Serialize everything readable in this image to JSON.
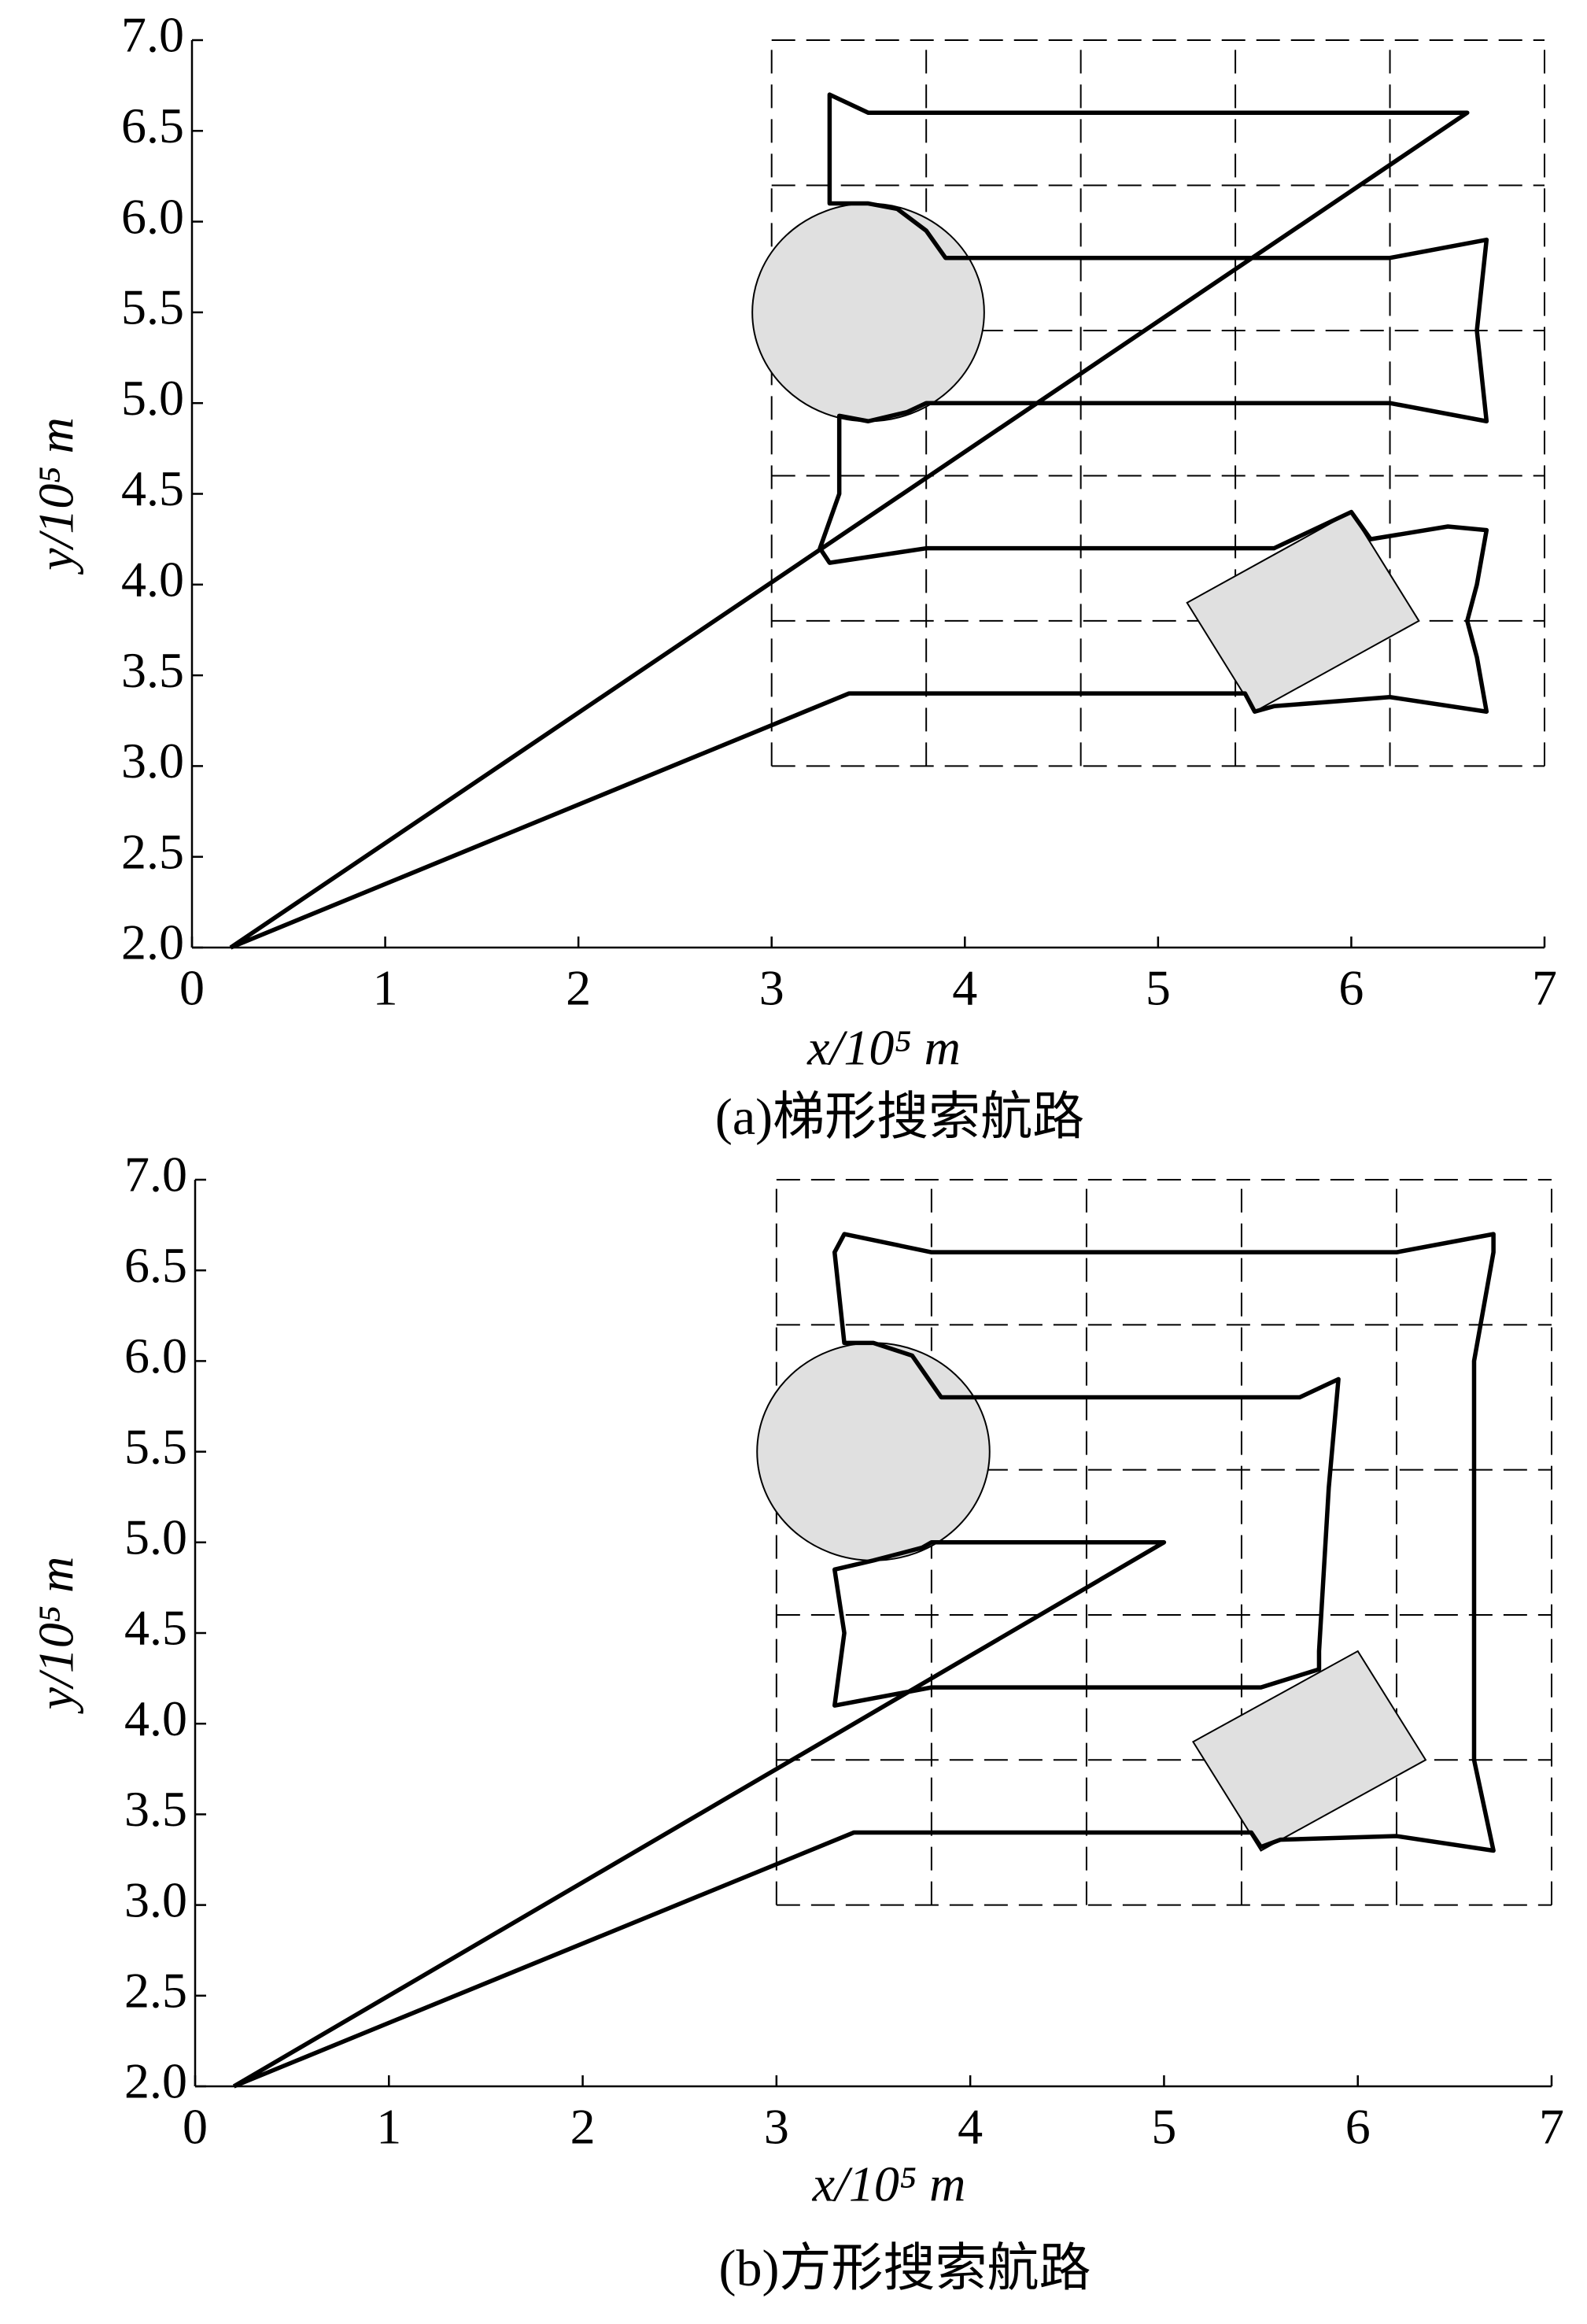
{
  "chart_data": [
    {
      "type": "line",
      "xlabel": "x/10⁵ m",
      "ylabel": "y/10⁵ m",
      "caption": "(a)梯形搜索航路",
      "xlim": [
        0,
        7
      ],
      "ylim": [
        2,
        7
      ],
      "xticks": [
        0,
        1,
        2,
        3,
        4,
        5,
        6,
        7
      ],
      "yticks": [
        {
          "value": 2,
          "label": "2.0"
        },
        {
          "value": 2.5,
          "label": "2.5"
        },
        {
          "value": 3,
          "label": "3.0"
        },
        {
          "value": 3.5,
          "label": "3.5"
        },
        {
          "value": 4,
          "label": "4.0"
        },
        {
          "value": 4.5,
          "label": "4.5"
        },
        {
          "value": 5,
          "label": "5.0"
        },
        {
          "value": 5.5,
          "label": "5.5"
        },
        {
          "value": 6,
          "label": "6.0"
        },
        {
          "value": 6.5,
          "label": "6.5"
        },
        {
          "value": 7,
          "label": "7.0"
        }
      ],
      "search_grid": {
        "x": [
          3,
          3.8,
          4.6,
          5.4,
          6.2,
          7
        ],
        "y": [
          3,
          3.8,
          4.6,
          5.4,
          6.2,
          7
        ]
      },
      "obstacle_color": "#e0e0e0",
      "circle": {
        "center": [
          3.5,
          5.5
        ],
        "radius": 0.6
      },
      "polygon": {
        "x": [
          5.15,
          6.0,
          6.35,
          5.5
        ],
        "y": [
          3.9,
          4.4,
          3.8,
          3.3
        ]
      },
      "series": [
        {
          "color": "#000000",
          "x": [
            0.2,
            3.4,
            5.45,
            5.5,
            5.6,
            6.2,
            6.7,
            6.65,
            6.6,
            6.65,
            6.7,
            6.5,
            6.1,
            6.0,
            5.6,
            3.8,
            3.3,
            3.25,
            3.35,
            3.35,
            3.5,
            3.7,
            3.8,
            6.2,
            6.7,
            6.65,
            6.7,
            6.2,
            3.9,
            3.8,
            3.65,
            3.5,
            3.3,
            3.3,
            3.5,
            6.6,
            0.2
          ],
          "y": [
            2.0,
            3.4,
            3.4,
            3.3,
            3.33,
            3.38,
            3.3,
            3.6,
            3.8,
            4.0,
            4.3,
            4.32,
            4.25,
            4.4,
            4.2,
            4.2,
            4.12,
            4.2,
            4.5,
            4.93,
            4.9,
            4.95,
            5.0,
            5.0,
            4.9,
            5.4,
            5.9,
            5.8,
            5.8,
            5.95,
            6.07,
            6.1,
            6.1,
            6.7,
            6.6,
            6.6,
            2.0
          ]
        }
      ]
    },
    {
      "type": "line",
      "xlabel": "x/10⁵ m",
      "ylabel": "y/10⁵ m",
      "caption": "(b)方形搜索航路",
      "xlim": [
        0,
        7
      ],
      "ylim": [
        2,
        7
      ],
      "xticks": [
        0,
        1,
        2,
        3,
        4,
        5,
        6,
        7
      ],
      "yticks": [
        {
          "value": 2,
          "label": "2.0"
        },
        {
          "value": 2.5,
          "label": "2.5"
        },
        {
          "value": 3,
          "label": "3.0"
        },
        {
          "value": 3.5,
          "label": "3.5"
        },
        {
          "value": 4,
          "label": "4.0"
        },
        {
          "value": 4.5,
          "label": "4.5"
        },
        {
          "value": 5,
          "label": "5.0"
        },
        {
          "value": 5.5,
          "label": "5.5"
        },
        {
          "value": 6,
          "label": "6.0"
        },
        {
          "value": 6.5,
          "label": "6.5"
        },
        {
          "value": 7,
          "label": "7.0"
        }
      ],
      "search_grid": {
        "x": [
          3,
          3.8,
          4.6,
          5.4,
          6.2,
          7
        ],
        "y": [
          3,
          3.8,
          4.6,
          5.4,
          6.2,
          7
        ]
      },
      "obstacle_color": "#e0e0e0",
      "circle": {
        "center": [
          3.5,
          5.5
        ],
        "radius": 0.6
      },
      "polygon": {
        "x": [
          5.15,
          6.0,
          6.35,
          5.5
        ],
        "y": [
          3.9,
          4.4,
          3.8,
          3.3
        ]
      },
      "series": [
        {
          "color": "#000000",
          "x": [
            0.2,
            3.4,
            5.45,
            5.5,
            5.6,
            6.2,
            6.7,
            6.6,
            6.6,
            6.7,
            6.7,
            6.2,
            3.8,
            3.35,
            3.3,
            3.35,
            3.5,
            3.7,
            3.85,
            4.2,
            5.7,
            5.9,
            5.85,
            5.8,
            5.8,
            5.5,
            3.8,
            3.3,
            3.35,
            3.3,
            3.5,
            3.75,
            3.8,
            5.0,
            0.2
          ],
          "y": [
            2.0,
            3.4,
            3.4,
            3.32,
            3.36,
            3.38,
            3.3,
            3.8,
            6.0,
            6.6,
            6.7,
            6.6,
            6.6,
            6.7,
            6.6,
            6.1,
            6.1,
            6.03,
            5.8,
            5.8,
            5.8,
            5.9,
            5.3,
            4.4,
            4.3,
            4.2,
            4.2,
            4.1,
            4.5,
            4.85,
            4.9,
            4.97,
            5.0,
            5.0,
            2.0
          ]
        }
      ]
    }
  ]
}
